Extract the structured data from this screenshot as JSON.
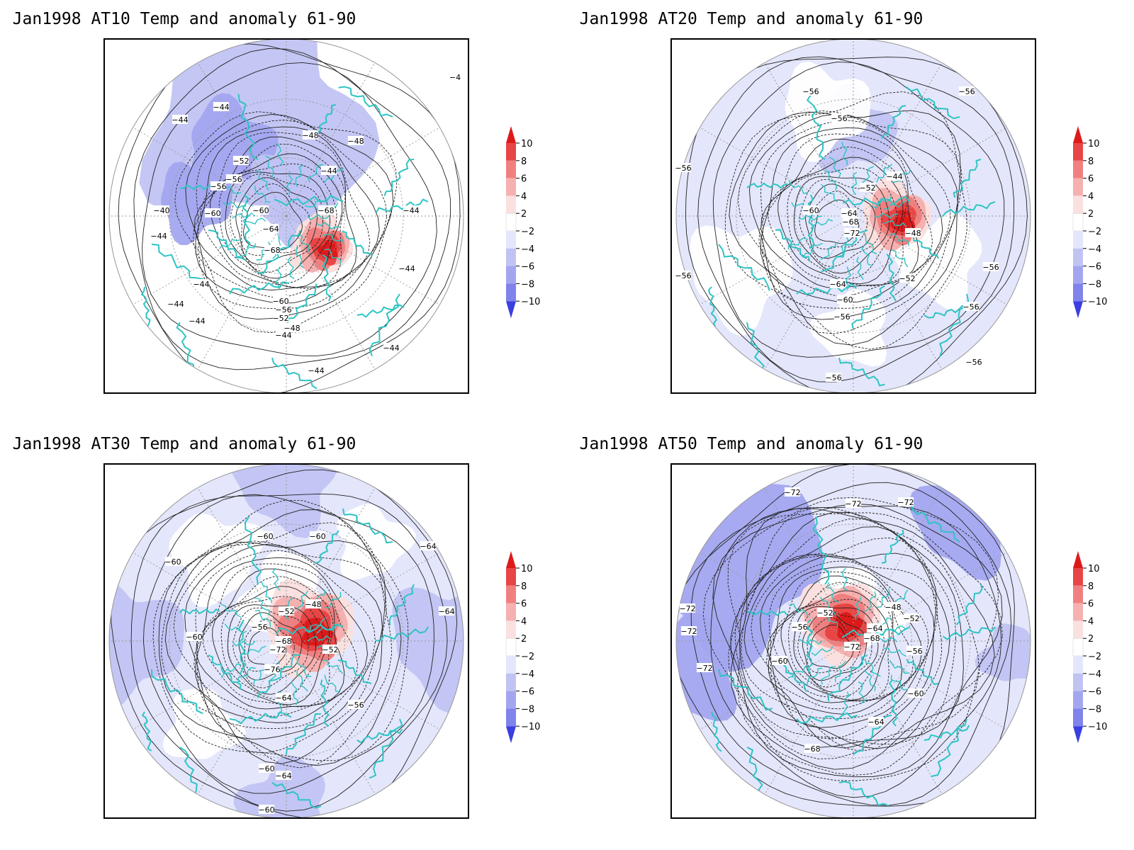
{
  "colors": {
    "frame": "#000000",
    "coastline": "#2ec4c4",
    "contour": "#222222",
    "graticule": "#9a9a9a",
    "warm_1": "#fbe0e0",
    "warm_2": "#f6b0b0",
    "warm_3": "#f08080",
    "warm_4": "#e84545",
    "warm_5": "#dd1a1a",
    "cool_1": "#e4e6fb",
    "cool_2": "#c1c3f3",
    "cool_3": "#a3a6ef",
    "cool_4": "#7f83ea",
    "cool_5": "#3a3fe0"
  },
  "colorbar": {
    "labels": [
      "10",
      "8",
      "6",
      "4",
      "2",
      "−2",
      "−4",
      "−6",
      "−8",
      "−10"
    ],
    "colors": [
      "#dd1a1a",
      "#e84545",
      "#f08080",
      "#f6b0b0",
      "#fbe0e0",
      "#ffffff",
      "#e4e6fb",
      "#c1c3f3",
      "#a3a6ef",
      "#7f83ea",
      "#3a3fe0"
    ]
  },
  "panels": [
    {
      "title": "Jan1998 AT10 Temp and anomaly 61-90",
      "contour_labels": [
        "-4",
        "-44",
        "-44",
        "-48",
        "-52",
        "-48",
        "-44",
        "-56",
        "-56",
        "-60",
        "-60",
        "-64",
        "-68",
        "-68",
        "-40",
        "-44",
        "-44",
        "-44",
        "-44",
        "-60",
        "-56",
        "-52",
        "-48",
        "-44",
        "-44",
        "-44",
        "-44",
        "-44"
      ]
    },
    {
      "title": "Jan1998 AT20 Temp and anomaly 61-90",
      "contour_labels": [
        "-56",
        "-56",
        "-56",
        "-56",
        "-56",
        "-44",
        "-52",
        "-60",
        "-64",
        "-68",
        "-72",
        "-48",
        "-56",
        "-56",
        "-64",
        "-52",
        "-60",
        "-56",
        "-56",
        "-56"
      ]
    },
    {
      "title": "Jan1998 AT30 Temp and anomaly 61-90",
      "contour_labels": [
        "-60",
        "-60",
        "-60",
        "-64",
        "-64",
        "-48",
        "-52",
        "-56",
        "-60",
        "-68",
        "-72",
        "-52",
        "-76",
        "-64",
        "-56",
        "-60",
        "-60",
        "-64",
        "-64"
      ]
    },
    {
      "title": "Jan1998 AT50 Temp and anomaly 61-90",
      "contour_labels": [
        "-72",
        "-72",
        "-72",
        "-72",
        "-72",
        "-72",
        "-48",
        "-52",
        "-52",
        "-56",
        "-64",
        "-68",
        "-72",
        "-56",
        "-60",
        "-60",
        "-64",
        "-68"
      ]
    }
  ]
}
